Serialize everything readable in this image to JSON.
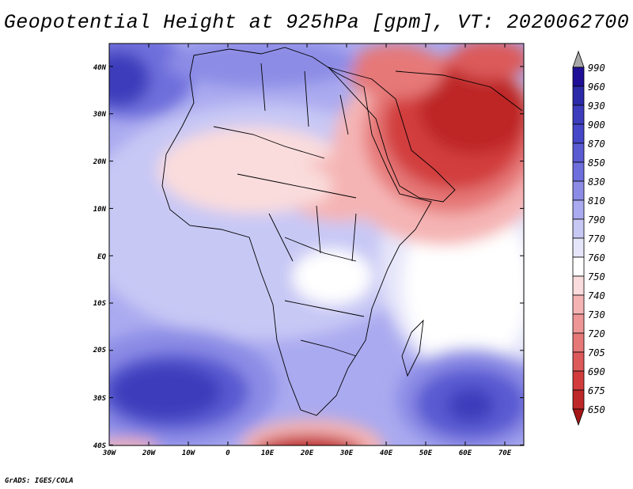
{
  "title": "Geopotential Height at 925hPa [gpm], VT: 2020062700",
  "credit": "GrADS: IGES/COLA",
  "variable": "Geopotential Height at 925hPa",
  "units": "gpm",
  "valid_time": "2020062700",
  "lat_labels": [
    "40N",
    "30N",
    "20N",
    "10N",
    "EQ",
    "10S",
    "20S",
    "30S",
    "40S"
  ],
  "lon_labels": [
    "30W",
    "20W",
    "10W",
    "0",
    "10E",
    "20E",
    "30E",
    "40E",
    "50E",
    "60E",
    "70E"
  ],
  "colorbar": {
    "levels": [
      "990",
      "960",
      "930",
      "900",
      "870",
      "850",
      "830",
      "810",
      "790",
      "770",
      "760",
      "750",
      "740",
      "730",
      "720",
      "705",
      "690",
      "675",
      "650"
    ],
    "colors": [
      "#a8a8a8",
      "#1e0f96",
      "#2c2aa8",
      "#3c3cbc",
      "#4646c8",
      "#5a5ad2",
      "#6e6edc",
      "#8c8ce6",
      "#aaaaf0",
      "#c8c8f5",
      "#e6e6fa",
      "#ffffff",
      "#fadcdc",
      "#f5b4b4",
      "#ee9696",
      "#e67878",
      "#dc5a5a",
      "#d23c3c",
      "#be2828",
      "#a51616"
    ]
  },
  "map_regions": {
    "highs": [
      "South Atlantic high",
      "South Indian Ocean high",
      "North Atlantic high"
    ],
    "lows": [
      "Arabian Peninsula low",
      "Southern Ocean trough"
    ]
  }
}
